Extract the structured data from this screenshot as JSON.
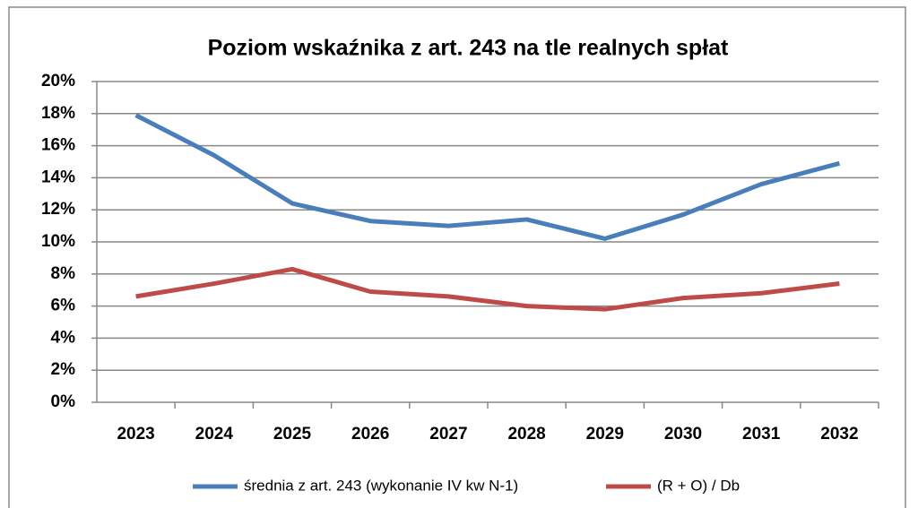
{
  "chart_data": {
    "type": "line",
    "title": "Poziom wskaźnika z art. 243 na tle realnych spłat",
    "categories": [
      "2023",
      "2024",
      "2025",
      "2026",
      "2027",
      "2028",
      "2029",
      "2030",
      "2031",
      "2032"
    ],
    "series": [
      {
        "name": "średnia z art. 243 (wykonanie IV kw N-1)",
        "color": "#4a7ebb",
        "values": [
          17.9,
          15.4,
          12.4,
          11.3,
          11.0,
          11.4,
          10.2,
          11.7,
          13.6,
          14.9
        ]
      },
      {
        "name": "(R + O) / Db",
        "color": "#be4b48",
        "values": [
          6.6,
          7.4,
          8.3,
          6.9,
          6.6,
          6.0,
          5.8,
          6.5,
          6.8,
          7.4
        ]
      }
    ],
    "ylim": [
      0,
      20
    ],
    "yticks": [
      {
        "value": 0,
        "label": "0%"
      },
      {
        "value": 2,
        "label": "2%"
      },
      {
        "value": 4,
        "label": "4%"
      },
      {
        "value": 6,
        "label": "6%"
      },
      {
        "value": 8,
        "label": "8%"
      },
      {
        "value": 10,
        "label": "10%"
      },
      {
        "value": 12,
        "label": "12%"
      },
      {
        "value": 14,
        "label": "14%"
      },
      {
        "value": 16,
        "label": "16%"
      },
      {
        "value": 18,
        "label": "18%"
      },
      {
        "value": 20,
        "label": "20%"
      }
    ],
    "grid": true,
    "legend": "bottom"
  }
}
